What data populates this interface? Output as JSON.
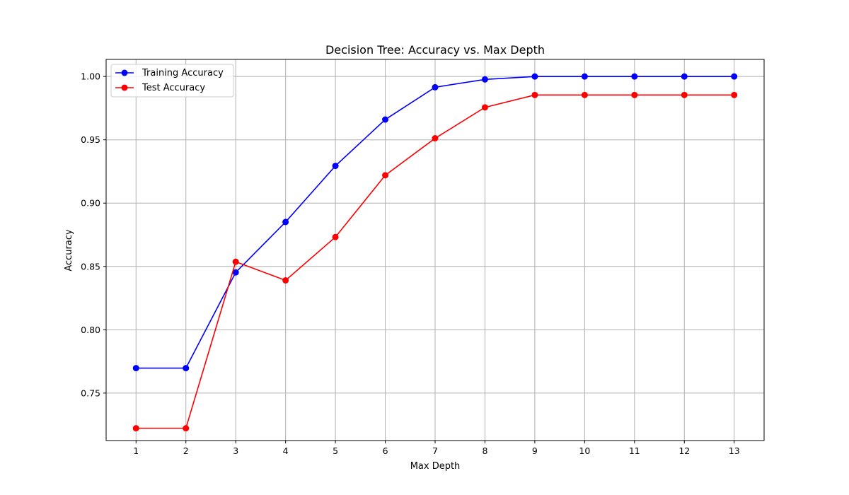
{
  "chart_data": {
    "type": "line",
    "title": "Decision Tree: Accuracy vs. Max Depth",
    "xlabel": "Max Depth",
    "ylabel": "Accuracy",
    "x": [
      1,
      2,
      3,
      4,
      5,
      6,
      7,
      8,
      9,
      10,
      11,
      12,
      13
    ],
    "x_tick_labels": [
      "1",
      "2",
      "3",
      "4",
      "5",
      "6",
      "7",
      "8",
      "9",
      "10",
      "11",
      "12",
      "13"
    ],
    "y_ticks": [
      0.75,
      0.8,
      0.85,
      0.9,
      0.95,
      1.0
    ],
    "y_tick_labels": [
      "0.75",
      "0.80",
      "0.85",
      "0.90",
      "0.95",
      "1.00"
    ],
    "xlim": [
      0.4,
      13.6
    ],
    "ylim": [
      0.7125,
      1.0135
    ],
    "grid": true,
    "legend_position": "upper left",
    "series": [
      {
        "name": "Training Accuracy",
        "color": "#0000ff",
        "marker": "circle",
        "values": [
          0.7697,
          0.7697,
          0.8453,
          0.8851,
          0.9294,
          0.966,
          0.9915,
          0.9977,
          1.0,
          1.0,
          1.0,
          1.0,
          1.0
        ]
      },
      {
        "name": "Test Accuracy",
        "color": "#ff0000",
        "marker": "circle",
        "values": [
          0.7222,
          0.7222,
          0.8537,
          0.839,
          0.8732,
          0.922,
          0.9512,
          0.9756,
          0.9854,
          0.9854,
          0.9854,
          0.9854,
          0.9854
        ]
      }
    ]
  }
}
